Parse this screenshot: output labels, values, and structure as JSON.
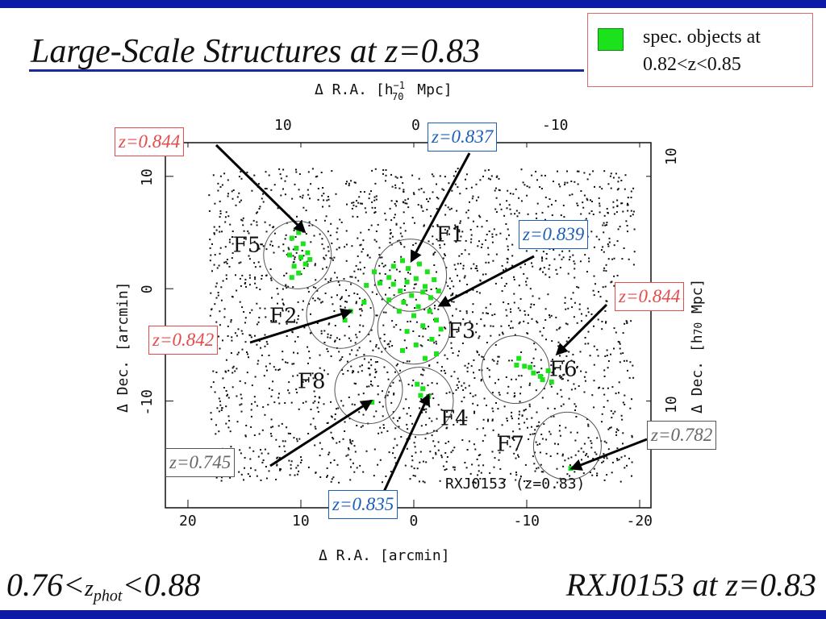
{
  "title": "Large-Scale Structures at z=0.83",
  "legend": {
    "line1": "spec. objects at",
    "line2": "0.82<z<0.85",
    "color": "#1be21b"
  },
  "footer": {
    "left": "0.76<zphot<0.88",
    "right": "RXJ0153 at z=0.83"
  },
  "colors": {
    "frame": "#0d1aa6",
    "redshift_red": "#e64a4a",
    "redshift_blue": "#1c5fb8",
    "redshift_gray": "#666666",
    "spec": "#1be21b"
  },
  "chart_data": {
    "type": "scatter",
    "annotation": "RXJ0153 (z=0.83)",
    "xlabel_bottom": "Δ R.A. [arcmin]",
    "xlabel_top": "Δ R.A. [h70^-1 Mpc]",
    "ylabel_left": "Δ Dec. [arcmin]",
    "ylabel_right": "Δ Dec. [h70^-1 Mpc]",
    "xlim": [
      22,
      -21
    ],
    "ylim": [
      -19.5,
      13
    ],
    "x_ticks_bottom": [
      20,
      10,
      0,
      -10,
      -20
    ],
    "y_ticks_left": [
      10,
      0,
      -10
    ],
    "x_ticks_top": [
      10,
      0,
      -10
    ],
    "y_ticks_right": [
      10,
      10
    ],
    "fields": [
      {
        "name": "F1",
        "x": 0.3,
        "y": 1.2,
        "r": 3.2
      },
      {
        "name": "F2",
        "x": 6.5,
        "y": -2.3,
        "r": 3.0
      },
      {
        "name": "F3",
        "x": 0.0,
        "y": -3.5,
        "r": 3.2
      },
      {
        "name": "F4",
        "x": -0.5,
        "y": -10.0,
        "r": 3.0
      },
      {
        "name": "F5",
        "x": 10.3,
        "y": 3.0,
        "r": 3.0
      },
      {
        "name": "F6",
        "x": -9.0,
        "y": -7.2,
        "r": 3.0
      },
      {
        "name": "F7",
        "x": -13.6,
        "y": -14.0,
        "r": 3.0
      },
      {
        "name": "F8",
        "x": 4.0,
        "y": -9.0,
        "r": 3.0
      }
    ],
    "redshift_labels": [
      {
        "text": "z=0.844",
        "tone": "red",
        "target_x": 9.7,
        "target_y": 5.1
      },
      {
        "text": "z=0.837",
        "tone": "blue",
        "target_x": 0.2,
        "target_y": 2.5
      },
      {
        "text": "z=0.839",
        "tone": "blue",
        "target_x": -2.3,
        "target_y": -1.5
      },
      {
        "text": "z=0.844",
        "tone": "red",
        "target_x": -12.7,
        "target_y": -5.8
      },
      {
        "text": "z=0.842",
        "tone": "red",
        "target_x": 5.6,
        "target_y": -2.0
      },
      {
        "text": "z=0.782",
        "tone": "gray",
        "target_x": -14.0,
        "target_y": -16.0
      },
      {
        "text": "z=0.745",
        "tone": "gray",
        "target_x": 3.8,
        "target_y": -10.0
      },
      {
        "text": "z=0.835",
        "tone": "blue",
        "target_x": -1.3,
        "target_y": -9.5
      }
    ],
    "spec_objects": [
      [
        10.2,
        5.0
      ],
      [
        10.8,
        4.5
      ],
      [
        9.8,
        4.0
      ],
      [
        10.4,
        3.6
      ],
      [
        9.4,
        3.2
      ],
      [
        10.0,
        2.8
      ],
      [
        11.0,
        3.0
      ],
      [
        9.6,
        2.2
      ],
      [
        10.6,
        2.0
      ],
      [
        10.2,
        1.4
      ],
      [
        9.2,
        2.6
      ],
      [
        10.8,
        1.0
      ],
      [
        3.5,
        1.5
      ],
      [
        3.0,
        0.5
      ],
      [
        2.2,
        1.0
      ],
      [
        1.8,
        2.0
      ],
      [
        1.0,
        2.5
      ],
      [
        0.5,
        1.8
      ],
      [
        -0.5,
        2.2
      ],
      [
        -1.2,
        1.5
      ],
      [
        -1.8,
        0.8
      ],
      [
        -2.2,
        -0.2
      ],
      [
        -1.5,
        -0.8
      ],
      [
        -0.8,
        -0.3
      ],
      [
        0.2,
        -0.6
      ],
      [
        1.2,
        -0.2
      ],
      [
        1.8,
        0.4
      ],
      [
        0.6,
        0.6
      ],
      [
        -0.2,
        0.9
      ],
      [
        -1.0,
        0.2
      ],
      [
        0.9,
        -1.2
      ],
      [
        -0.4,
        -1.6
      ],
      [
        -1.4,
        -2.0
      ],
      [
        -2.0,
        -2.8
      ],
      [
        0.0,
        -2.4
      ],
      [
        1.3,
        -2.0
      ],
      [
        -0.8,
        -3.3
      ],
      [
        -2.4,
        -3.6
      ],
      [
        0.6,
        -3.8
      ],
      [
        -1.6,
        -4.5
      ],
      [
        -0.2,
        -5.0
      ],
      [
        1.0,
        -5.5
      ],
      [
        2.2,
        -1.0
      ],
      [
        -1.0,
        -6.2
      ],
      [
        -2.0,
        -5.8
      ],
      [
        4.2,
        0.3
      ],
      [
        5.6,
        -2.0
      ],
      [
        4.4,
        -1.2
      ],
      [
        6.1,
        -2.8
      ],
      [
        -9.3,
        -6.2
      ],
      [
        -9.1,
        -6.8
      ],
      [
        -9.8,
        -6.9
      ],
      [
        -10.3,
        -7.0
      ],
      [
        -10.6,
        -7.5
      ],
      [
        -11.2,
        -7.8
      ],
      [
        -11.9,
        -7.3
      ],
      [
        -11.4,
        -8.1
      ],
      [
        -12.2,
        -8.3
      ],
      [
        -0.3,
        -8.5
      ],
      [
        -0.8,
        -8.9
      ],
      [
        -0.6,
        -9.5
      ],
      [
        -1.3,
        -9.6
      ],
      [
        3.7,
        -10.1
      ],
      [
        -1.1,
        -10.2
      ],
      [
        -13.9,
        -16.0
      ]
    ]
  }
}
